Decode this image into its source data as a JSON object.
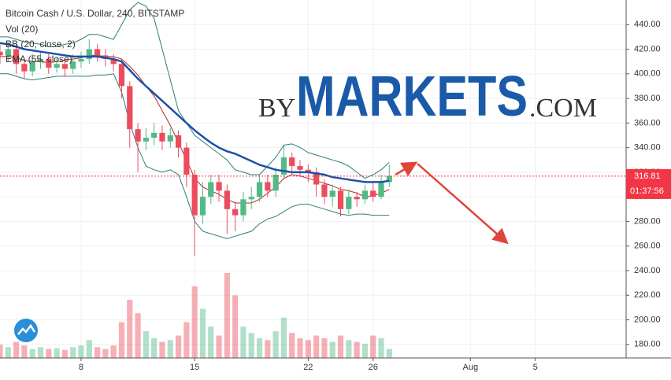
{
  "chart_data": {
    "type": "candlestick",
    "title": "Bitcoin Cash / U.S. Dollar, 240, BITSTAMP",
    "x": [
      3,
      3.5,
      4,
      4.5,
      5,
      5.5,
      6,
      6.5,
      7,
      7.5,
      8,
      8.5,
      9,
      9.5,
      10,
      10.5,
      11,
      11.5,
      12,
      12.5,
      13,
      13.5,
      14,
      14.5,
      15,
      15.5,
      16,
      16.5,
      17,
      17.5,
      18,
      18.5,
      19,
      19.5,
      20,
      20.5,
      21,
      21.5,
      22,
      22.5,
      23,
      23.5,
      24,
      24.5,
      25,
      25.5,
      26,
      26.5,
      27
    ],
    "open": [
      418,
      415,
      420,
      408,
      402,
      410,
      412,
      405,
      408,
      404,
      410,
      412,
      420,
      415,
      412,
      408,
      390,
      355,
      345,
      348,
      352,
      345,
      350,
      340,
      318,
      285,
      300,
      312,
      305,
      290,
      285,
      298,
      300,
      312,
      305,
      318,
      332,
      325,
      322,
      320,
      310,
      300,
      305,
      290,
      300,
      298,
      305,
      300,
      312
    ],
    "high": [
      424,
      426,
      424,
      412,
      416,
      418,
      416,
      414,
      412,
      416,
      418,
      428,
      424,
      420,
      416,
      412,
      394,
      360,
      356,
      360,
      358,
      356,
      354,
      344,
      322,
      312,
      318,
      318,
      310,
      296,
      304,
      308,
      318,
      318,
      324,
      342,
      336,
      330,
      326,
      324,
      314,
      310,
      308,
      306,
      304,
      310,
      312,
      318,
      326
    ],
    "low": [
      408,
      410,
      400,
      396,
      398,
      404,
      400,
      401,
      398,
      400,
      405,
      408,
      410,
      406,
      402,
      380,
      340,
      320,
      338,
      342,
      338,
      340,
      332,
      308,
      252,
      278,
      294,
      296,
      270,
      272,
      280,
      290,
      296,
      300,
      300,
      314,
      318,
      316,
      312,
      300,
      294,
      292,
      284,
      286,
      292,
      294,
      296,
      298,
      308
    ],
    "close": [
      415,
      420,
      408,
      402,
      410,
      412,
      405,
      408,
      404,
      410,
      412,
      420,
      415,
      412,
      408,
      390,
      355,
      345,
      348,
      352,
      345,
      350,
      340,
      318,
      285,
      300,
      312,
      305,
      290,
      285,
      298,
      300,
      312,
      305,
      318,
      332,
      325,
      322,
      320,
      310,
      300,
      305,
      290,
      300,
      298,
      305,
      300,
      312,
      317
    ],
    "up_color": "#53b987",
    "down_color": "#eb4d5c",
    "xlim": [
      3,
      41.6
    ],
    "xticks": [
      8,
      15,
      22,
      26,
      {
        "value": 32,
        "label": "Aug"
      },
      {
        "value": 36,
        "label": "5"
      }
    ],
    "ylim": [
      169,
      460
    ],
    "yticks": [
      {
        "value": 180,
        "label": "180.00"
      },
      {
        "value": 200,
        "label": "200.00"
      },
      {
        "value": 220,
        "label": "220.00"
      },
      {
        "value": 240,
        "label": "240.00"
      },
      {
        "value": 260,
        "label": "260.00"
      },
      {
        "value": 280,
        "label": "280.00"
      },
      {
        "value": 300,
        "label": "300.00"
      },
      {
        "value": 320,
        "label": "320.00"
      },
      {
        "value": 340,
        "label": "340.00"
      },
      {
        "value": 360,
        "label": "360.00"
      },
      {
        "value": 380,
        "label": "380.00"
      },
      {
        "value": 400,
        "label": "400.00"
      },
      {
        "value": 420,
        "label": "420.00"
      },
      {
        "value": 440,
        "label": "440.00"
      }
    ],
    "grid": true,
    "y2lim": [
      0,
      400
    ],
    "volume": {
      "name": "Vol (20)",
      "axis": "y2",
      "values": [
        15,
        12,
        18,
        14,
        10,
        12,
        10,
        11,
        9,
        12,
        14,
        20,
        12,
        10,
        14,
        40,
        65,
        50,
        30,
        22,
        18,
        20,
        25,
        40,
        80,
        55,
        35,
        25,
        95,
        70,
        35,
        28,
        22,
        20,
        30,
        45,
        28,
        22,
        20,
        25,
        22,
        18,
        25,
        20,
        18,
        16,
        25,
        22,
        10
      ]
    },
    "bollinger": {
      "name": "BB (20, close, 2)",
      "color": "#2e7d7a",
      "basis_color": "#b22a2a",
      "upper": [
        430,
        430,
        428,
        426,
        425,
        424,
        422,
        422,
        424,
        425,
        428,
        432,
        432,
        430,
        428,
        440,
        452,
        458,
        455,
        445,
        420,
        395,
        370,
        360,
        350,
        345,
        340,
        335,
        330,
        322,
        320,
        318,
        318,
        325,
        332,
        342,
        343,
        340,
        336,
        334,
        332,
        330,
        328,
        325,
        320,
        315,
        318,
        322,
        328
      ],
      "basis": [
        414,
        414,
        413,
        411,
        410,
        410,
        409,
        410,
        411,
        412,
        413,
        415,
        415,
        414,
        414,
        412,
        406,
        399,
        390,
        382,
        370,
        358,
        344,
        330,
        315,
        308,
        305,
        302,
        298,
        295,
        295,
        295,
        298,
        303,
        308,
        315,
        318,
        317,
        315,
        313,
        311,
        309,
        306,
        305,
        303,
        300,
        301,
        303,
        306
      ],
      "lower": [
        400,
        400,
        398,
        396,
        395,
        396,
        397,
        398,
        398,
        398,
        398,
        398,
        399,
        399,
        400,
        385,
        360,
        340,
        325,
        322,
        320,
        322,
        318,
        300,
        280,
        272,
        270,
        268,
        266,
        268,
        270,
        272,
        278,
        282,
        284,
        288,
        292,
        294,
        294,
        292,
        290,
        288,
        286,
        285,
        286,
        286,
        285,
        285,
        285
      ]
    },
    "ema": {
      "name": "EMA (55, close)",
      "color": "#1e4fa8",
      "values": [
        425,
        424,
        422,
        420,
        419,
        418,
        417,
        416,
        415,
        414,
        414,
        414,
        414,
        413,
        412,
        410,
        403,
        396,
        390,
        384,
        378,
        372,
        366,
        360,
        354,
        349,
        344,
        340,
        337,
        335,
        332,
        329,
        326,
        324,
        322,
        321,
        320,
        320,
        320,
        319,
        318,
        316,
        315,
        314,
        313,
        312,
        312,
        312,
        313
      ]
    },
    "last_price": 316.81,
    "countdown": "01:37:56",
    "last_price_color": "#f23645"
  },
  "watermark": {
    "prefix": "BY",
    "brand": "MARKETS",
    "suffix": ".COM"
  }
}
